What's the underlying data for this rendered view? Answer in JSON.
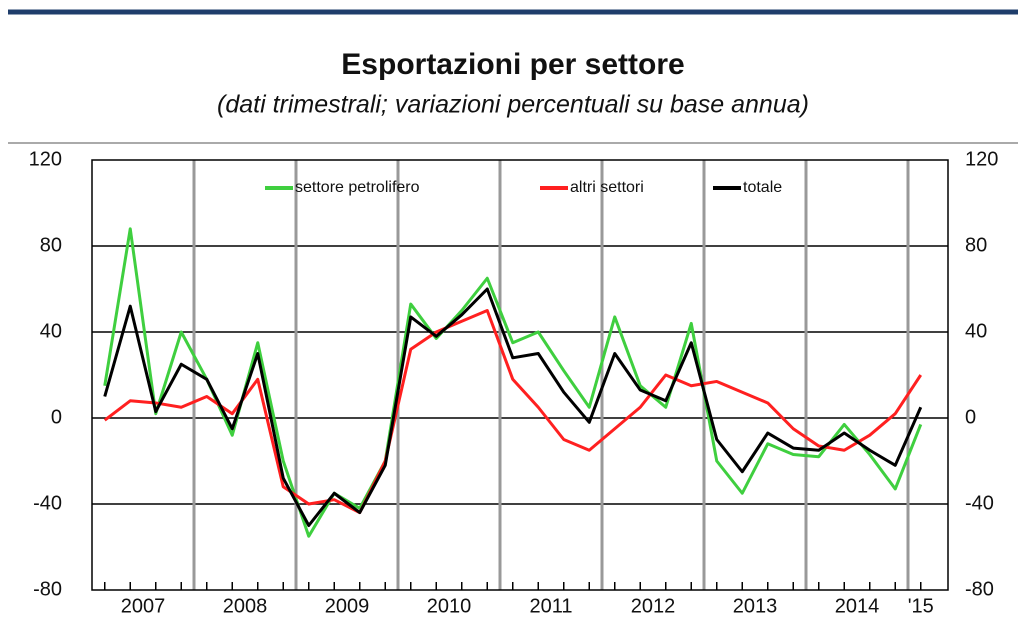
{
  "chart_data": {
    "type": "line",
    "title": "Esportazioni per settore",
    "subtitle": "(dati trimestrali; variazioni percentuali su base annua)",
    "categories": [
      "2007",
      null,
      null,
      null,
      "2008",
      null,
      null,
      null,
      "2009",
      null,
      null,
      null,
      "2010",
      null,
      null,
      null,
      "2011",
      null,
      null,
      null,
      "2012",
      null,
      null,
      null,
      "2013",
      null,
      null,
      null,
      "2014",
      null,
      null,
      null,
      "'15"
    ],
    "series": [
      {
        "name": "settore petrolifero",
        "color": "#3fcf3f",
        "values": [
          15,
          88,
          2,
          40,
          18,
          -8,
          35,
          -20,
          -55,
          -35,
          -42,
          -20,
          53,
          37,
          50,
          65,
          35,
          40,
          22,
          5,
          47,
          15,
          5,
          44,
          -20,
          -35,
          -12,
          -17,
          -18,
          -3,
          -17,
          -33,
          -3
        ]
      },
      {
        "name": "altri settori",
        "color": "#ff2020",
        "values": [
          -1,
          8,
          7,
          5,
          10,
          2,
          18,
          -32,
          -40,
          -38,
          -44,
          -20,
          32,
          40,
          45,
          50,
          18,
          5,
          -10,
          -15,
          -5,
          5,
          20,
          15,
          17,
          12,
          7,
          -5,
          -13,
          -15,
          -8,
          2,
          20
        ]
      },
      {
        "name": "totale",
        "color": "#000000",
        "values": [
          10,
          52,
          3,
          25,
          18,
          -5,
          30,
          -28,
          -50,
          -35,
          -44,
          -22,
          47,
          38,
          48,
          60,
          28,
          30,
          12,
          -2,
          30,
          13,
          8,
          35,
          -10,
          -25,
          -7,
          -14,
          -15,
          -7,
          -15,
          -22,
          5
        ]
      }
    ],
    "ylim": [
      -80,
      120
    ],
    "yticks": [
      -80,
      -40,
      0,
      40,
      80,
      120
    ],
    "y2lim": [
      -80,
      120
    ],
    "y2ticks": [
      -80,
      -40,
      0,
      40,
      80,
      120
    ],
    "grid": true
  }
}
